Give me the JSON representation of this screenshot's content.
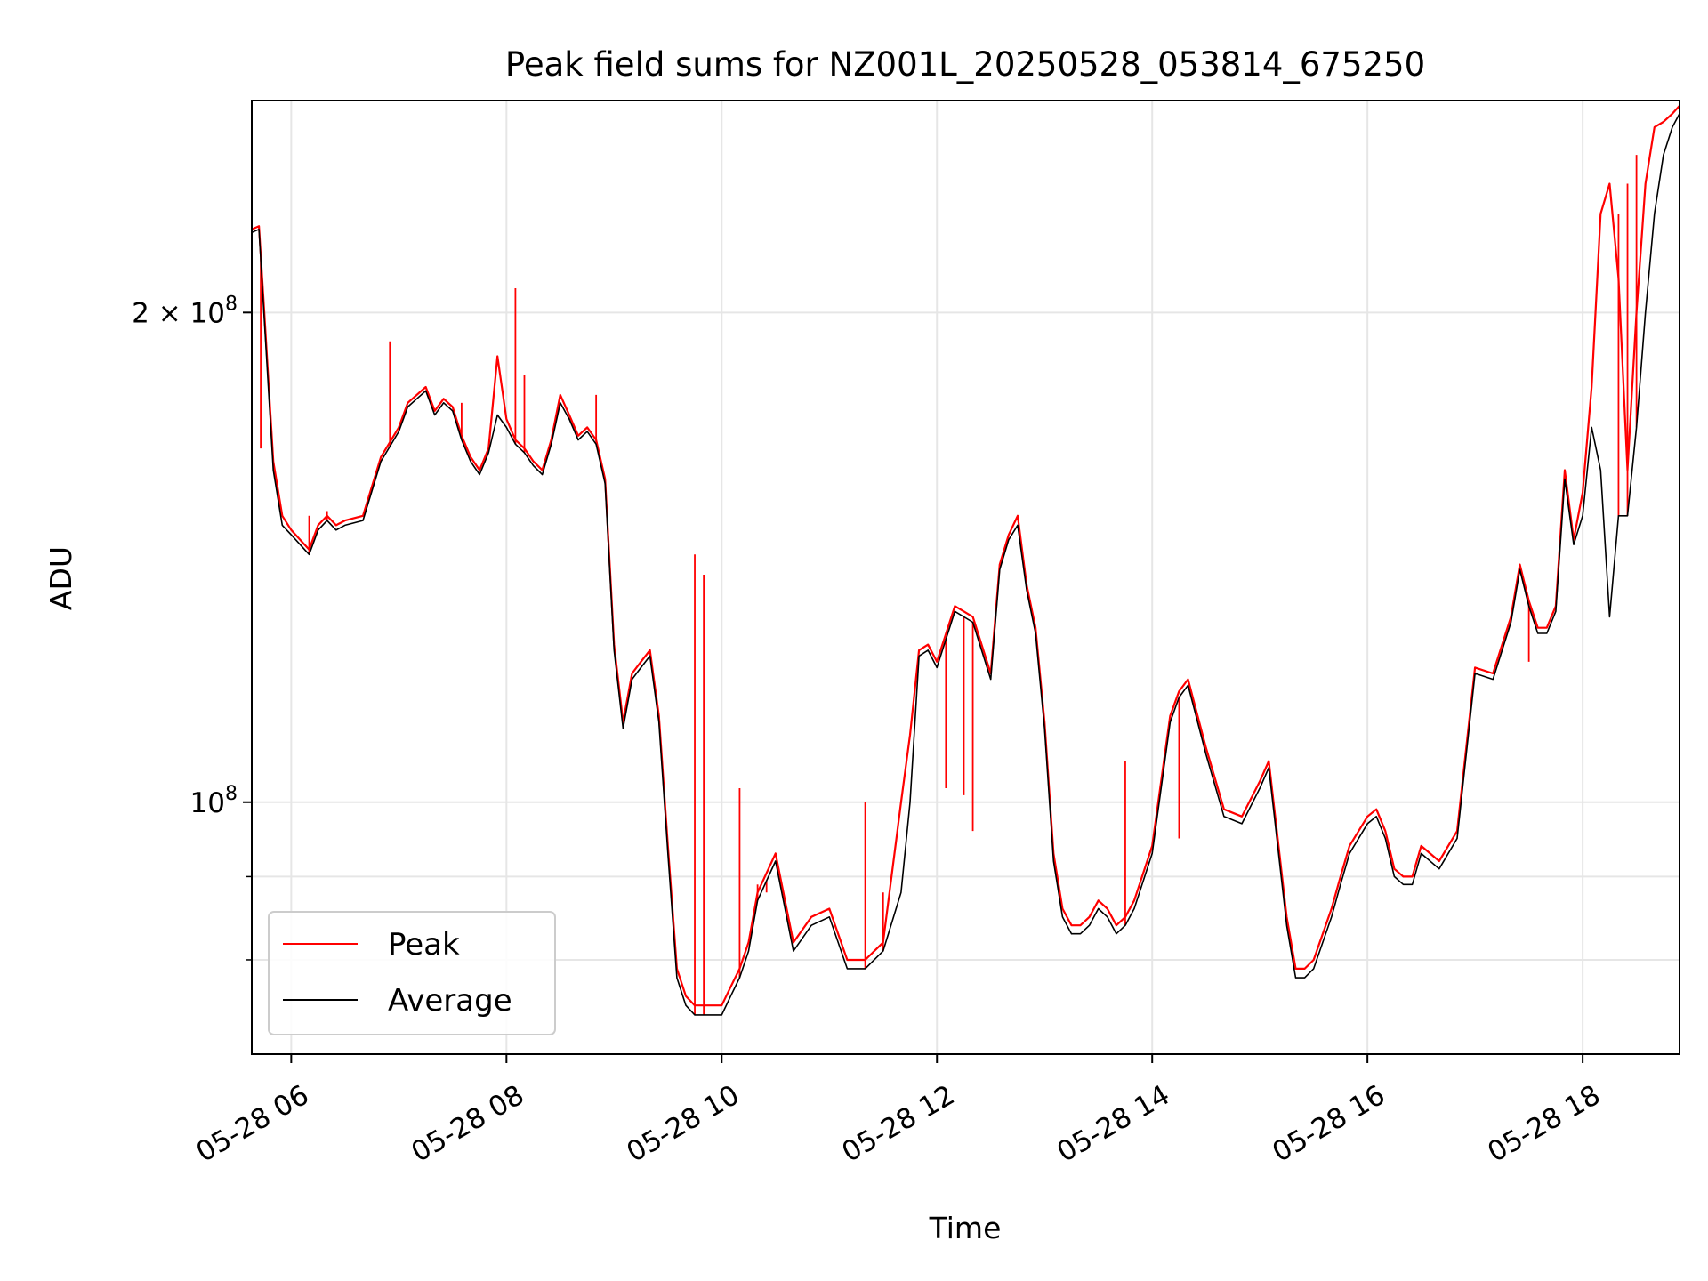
{
  "chart_data": {
    "type": "line",
    "title": "Peak field sums for NZ001L_20250528_053814_675250",
    "xlabel": "Time",
    "ylabel": "ADU",
    "yscale": "log",
    "ylim": [
      70000000,
      270000000
    ],
    "xlim": [
      "2025-05-28 05:38",
      "2025-05-28 18:54"
    ],
    "grid": true,
    "legend_position": "lower-left",
    "x_ticks": [
      "05-28 06",
      "05-28 08",
      "05-28 10",
      "05-28 12",
      "05-28 14",
      "05-28 16",
      "05-28 18"
    ],
    "y_ticks": [
      {
        "value": 200000000,
        "mantissa": "2",
        "times": "×",
        "base": "10",
        "exp": "8"
      },
      {
        "value": 100000000,
        "mantissa": "",
        "times": "",
        "base": "10",
        "exp": "8"
      }
    ],
    "colors": {
      "peak": "#ff0000",
      "average": "#000000",
      "grid": "#e6e6e6"
    },
    "series": [
      {
        "name": "Peak",
        "color": "#ff0000",
        "x": [
          "2025-05-28 05:38",
          "05:42",
          "05:45",
          "05:50",
          "05:55",
          "06:00",
          "06:05",
          "06:10",
          "06:15",
          "06:20",
          "06:25",
          "06:30",
          "06:40",
          "06:50",
          "07:00",
          "07:05",
          "07:10",
          "07:15",
          "07:20",
          "07:25",
          "07:30",
          "07:35",
          "07:40",
          "07:45",
          "07:50",
          "07:55",
          "08:00",
          "08:05",
          "08:10",
          "08:15",
          "08:20",
          "08:25",
          "08:30",
          "08:35",
          "08:40",
          "08:45",
          "08:50",
          "08:55",
          "09:00",
          "09:05",
          "09:10",
          "09:15",
          "09:20",
          "09:25",
          "09:30",
          "09:35",
          "09:40",
          "09:45",
          "09:50",
          "09:55",
          "10:00",
          "10:05",
          "10:10",
          "10:15",
          "10:20",
          "10:30",
          "10:40",
          "10:50",
          "11:00",
          "11:10",
          "11:20",
          "11:30",
          "11:40",
          "11:45",
          "11:50",
          "11:55",
          "12:00",
          "12:10",
          "12:20",
          "12:30",
          "12:35",
          "12:40",
          "12:45",
          "12:50",
          "12:55",
          "13:00",
          "13:05",
          "13:10",
          "13:15",
          "13:20",
          "13:25",
          "13:30",
          "13:35",
          "13:40",
          "13:45",
          "13:50",
          "14:00",
          "14:10",
          "14:15",
          "14:20",
          "14:30",
          "14:40",
          "14:50",
          "15:00",
          "15:05",
          "15:10",
          "15:15",
          "15:20",
          "15:25",
          "15:30",
          "15:40",
          "15:45",
          "15:50",
          "16:00",
          "16:05",
          "16:10",
          "16:15",
          "16:20",
          "16:25",
          "16:30",
          "16:40",
          "16:50",
          "17:00",
          "17:10",
          "17:20",
          "17:25",
          "17:30",
          "17:35",
          "17:40",
          "17:45",
          "17:50",
          "17:55",
          "18:00",
          "18:05",
          "18:10",
          "18:15",
          "18:20",
          "18:25",
          "18:30",
          "18:35",
          "18:40",
          "18:45",
          "18:50",
          "18:54"
        ],
        "values": [
          225,
          226,
          200,
          162,
          150,
          147,
          145,
          143,
          148,
          150,
          148,
          149,
          150,
          163,
          170,
          176,
          178,
          180,
          174,
          177,
          175,
          168,
          163,
          160,
          165,
          188,
          172,
          167,
          165,
          162,
          160,
          167,
          178,
          173,
          168,
          170,
          167,
          158,
          125,
          112,
          120,
          122,
          124,
          113,
          94,
          79,
          76,
          75,
          75,
          75,
          75,
          77,
          79,
          82,
          88,
          93,
          82,
          85,
          86,
          80,
          80,
          82,
          100,
          110,
          124,
          125,
          122,
          132,
          130,
          120,
          140,
          146,
          150,
          136,
          128,
          112,
          93,
          86,
          84,
          84,
          85,
          87,
          86,
          84,
          85,
          87,
          94,
          113,
          117,
          119,
          108,
          99,
          98,
          103,
          106,
          95,
          85,
          79,
          79,
          80,
          86,
          90,
          94,
          98,
          99,
          96,
          91,
          90,
          90,
          94,
          92,
          96,
          121,
          120,
          130,
          140,
          133,
          128,
          128,
          132,
          160,
          145,
          155,
          180,
          230,
          240,
          210,
          160,
          200,
          240,
          260,
          262,
          265,
          268
        ],
        "spikes": [
          {
            "x": "05:43",
            "value": 165
          },
          {
            "x": "06:10",
            "value": 150
          },
          {
            "x": "06:20",
            "value": 151
          },
          {
            "x": "06:55",
            "value": 192
          },
          {
            "x": "07:35",
            "value": 176
          },
          {
            "x": "08:05",
            "value": 207
          },
          {
            "x": "08:10",
            "value": 183
          },
          {
            "x": "08:50",
            "value": 178
          },
          {
            "x": "09:45",
            "value": 142
          },
          {
            "x": "09:50",
            "value": 138
          },
          {
            "x": "10:10",
            "value": 102
          },
          {
            "x": "10:20",
            "value": 89
          },
          {
            "x": "10:25",
            "value": 88
          },
          {
            "x": "11:20",
            "value": 100
          },
          {
            "x": "11:30",
            "value": 88
          },
          {
            "x": "12:05",
            "value": 102
          },
          {
            "x": "12:15",
            "value": 101
          },
          {
            "x": "12:20",
            "value": 96
          },
          {
            "x": "13:45",
            "value": 106
          },
          {
            "x": "14:15",
            "value": 95
          },
          {
            "x": "17:30",
            "value": 122
          },
          {
            "x": "18:20",
            "value": 230
          },
          {
            "x": "18:25",
            "value": 240
          },
          {
            "x": "18:30",
            "value": 250
          }
        ]
      },
      {
        "name": "Average",
        "color": "#000000",
        "x": [
          "2025-05-28 05:38",
          "05:42",
          "05:45",
          "05:50",
          "05:55",
          "06:00",
          "06:05",
          "06:10",
          "06:15",
          "06:20",
          "06:25",
          "06:30",
          "06:40",
          "06:50",
          "07:00",
          "07:05",
          "07:10",
          "07:15",
          "07:20",
          "07:25",
          "07:30",
          "07:35",
          "07:40",
          "07:45",
          "07:50",
          "07:55",
          "08:00",
          "08:05",
          "08:10",
          "08:15",
          "08:20",
          "08:25",
          "08:30",
          "08:35",
          "08:40",
          "08:45",
          "08:50",
          "08:55",
          "09:00",
          "09:05",
          "09:10",
          "09:15",
          "09:20",
          "09:25",
          "09:30",
          "09:35",
          "09:40",
          "09:45",
          "09:50",
          "09:55",
          "10:00",
          "10:05",
          "10:10",
          "10:15",
          "10:20",
          "10:30",
          "10:40",
          "10:50",
          "11:00",
          "11:10",
          "11:20",
          "11:30",
          "11:40",
          "11:45",
          "11:50",
          "11:55",
          "12:00",
          "12:10",
          "12:20",
          "12:30",
          "12:35",
          "12:40",
          "12:45",
          "12:50",
          "12:55",
          "13:00",
          "13:05",
          "13:10",
          "13:15",
          "13:20",
          "13:25",
          "13:30",
          "13:35",
          "13:40",
          "13:45",
          "13:50",
          "14:00",
          "14:10",
          "14:15",
          "14:20",
          "14:30",
          "14:40",
          "14:50",
          "15:00",
          "15:05",
          "15:10",
          "15:15",
          "15:20",
          "15:25",
          "15:30",
          "15:40",
          "15:45",
          "15:50",
          "16:00",
          "16:05",
          "16:10",
          "16:15",
          "16:20",
          "16:25",
          "16:30",
          "16:40",
          "16:50",
          "17:00",
          "17:10",
          "17:20",
          "17:25",
          "17:30",
          "17:35",
          "17:40",
          "17:45",
          "17:50",
          "17:55",
          "18:00",
          "18:05",
          "18:10",
          "18:15",
          "18:20",
          "18:25",
          "18:30",
          "18:35",
          "18:40",
          "18:45",
          "18:50",
          "18:54"
        ],
        "values": [
          224,
          225,
          198,
          160,
          148,
          146,
          144,
          142,
          147,
          149,
          147,
          148,
          149,
          162,
          169,
          175,
          177,
          179,
          173,
          176,
          174,
          167,
          162,
          159,
          164,
          173,
          170,
          166,
          164,
          161,
          159,
          166,
          176,
          172,
          167,
          169,
          166,
          157,
          124,
          111,
          119,
          121,
          123,
          112,
          93,
          78,
          75,
          74,
          74,
          74,
          74,
          76,
          78,
          81,
          87,
          92,
          81,
          84,
          85,
          79,
          79,
          81,
          88,
          100,
          123,
          124,
          121,
          131,
          129,
          119,
          139,
          145,
          148,
          135,
          127,
          111,
          92,
          85,
          83,
          83,
          84,
          86,
          85,
          83,
          84,
          86,
          93,
          112,
          116,
          118,
          107,
          98,
          97,
          102,
          105,
          94,
          84,
          78,
          78,
          79,
          85,
          89,
          93,
          97,
          98,
          95,
          90,
          89,
          89,
          93,
          91,
          95,
          120,
          119,
          129,
          139,
          132,
          127,
          127,
          131,
          158,
          144,
          150,
          170,
          160,
          130,
          150,
          150,
          170,
          200,
          230,
          250,
          260,
          265
        ]
      }
    ]
  }
}
